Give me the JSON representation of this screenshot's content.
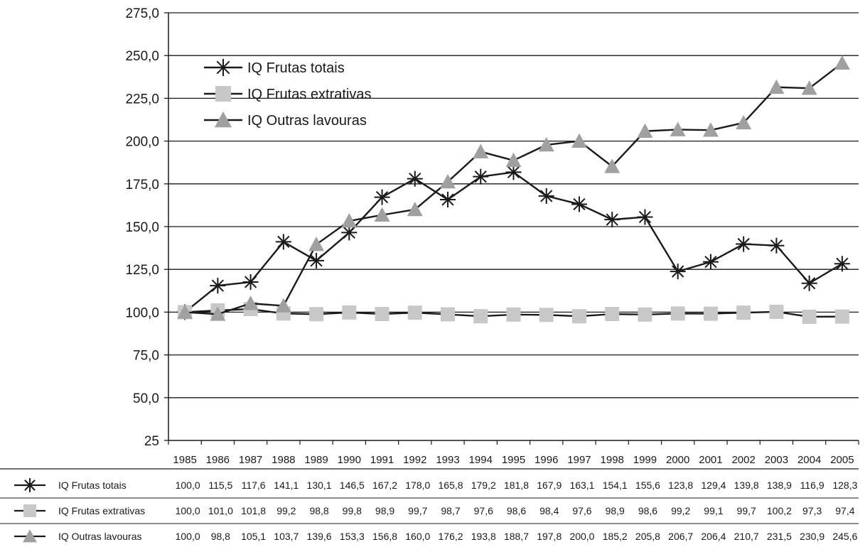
{
  "chart_data": {
    "type": "line",
    "title": "",
    "xlabel": "",
    "ylabel": "",
    "x": [
      "1985",
      "1986",
      "1987",
      "1988",
      "1989",
      "1990",
      "1991",
      "1992",
      "1993",
      "1994",
      "1995",
      "1996",
      "1997",
      "1998",
      "1999",
      "2000",
      "2001",
      "2002",
      "2003",
      "2004",
      "2005"
    ],
    "ylim": [
      25,
      275
    ],
    "yticks": [
      "275,0",
      "250,0",
      "225,0",
      "200,0",
      "175,0",
      "150,0",
      "125,0",
      "100,0",
      "75,0",
      "50,0",
      "25"
    ],
    "ytick_values": [
      275,
      250,
      225,
      200,
      175,
      150,
      125,
      100,
      75,
      50,
      25
    ],
    "grid": true,
    "legend_position": "top-left",
    "series": [
      {
        "name": "IQ Frutas totais",
        "marker": "asterisk",
        "marker_color": "#1a1a1a",
        "values": [
          100.0,
          115.5,
          117.6,
          141.1,
          130.1,
          146.5,
          167.2,
          178.0,
          165.8,
          179.2,
          181.8,
          167.9,
          163.1,
          154.1,
          155.6,
          123.8,
          129.4,
          139.8,
          138.9,
          116.9,
          128.3
        ],
        "labels": [
          "100,0",
          "115,5",
          "117,6",
          "141,1",
          "130,1",
          "146,5",
          "167,2",
          "178,0",
          "165,8",
          "179,2",
          "181,8",
          "167,9",
          "163,1",
          "154,1",
          "155,6",
          "123,8",
          "129,4",
          "139,8",
          "138,9",
          "116,9",
          "128,3"
        ]
      },
      {
        "name": "IQ Frutas extrativas",
        "marker": "square",
        "marker_color": "#c8c8c8",
        "values": [
          100.0,
          101.0,
          101.8,
          99.2,
          98.8,
          99.8,
          98.9,
          99.7,
          98.7,
          97.6,
          98.6,
          98.4,
          97.6,
          98.9,
          98.6,
          99.2,
          99.1,
          99.7,
          100.2,
          97.3,
          97.4
        ],
        "labels": [
          "100,0",
          "101,0",
          "101,8",
          "99,2",
          "98,8",
          "99,8",
          "98,9",
          "99,7",
          "98,7",
          "97,6",
          "98,6",
          "98,4",
          "97,6",
          "98,9",
          "98,6",
          "99,2",
          "99,1",
          "99,7",
          "100,2",
          "97,3",
          "97,4"
        ]
      },
      {
        "name": "IQ Outras lavouras",
        "marker": "triangle",
        "marker_color": "#a0a0a0",
        "values": [
          100.0,
          98.8,
          105.1,
          103.7,
          139.6,
          153.3,
          156.8,
          160.0,
          176.2,
          193.8,
          188.7,
          197.8,
          200.0,
          185.2,
          205.8,
          206.7,
          206.4,
          210.7,
          231.5,
          230.9,
          245.6
        ],
        "labels": [
          "100,0",
          "98,8",
          "105,1",
          "103,7",
          "139,6",
          "153,3",
          "156,8",
          "160,0",
          "176,2",
          "193,8",
          "188,7",
          "197,8",
          "200,0",
          "185,2",
          "205,8",
          "206,7",
          "206,4",
          "210,7",
          "231,5",
          "230,9",
          "245,6"
        ]
      }
    ]
  }
}
